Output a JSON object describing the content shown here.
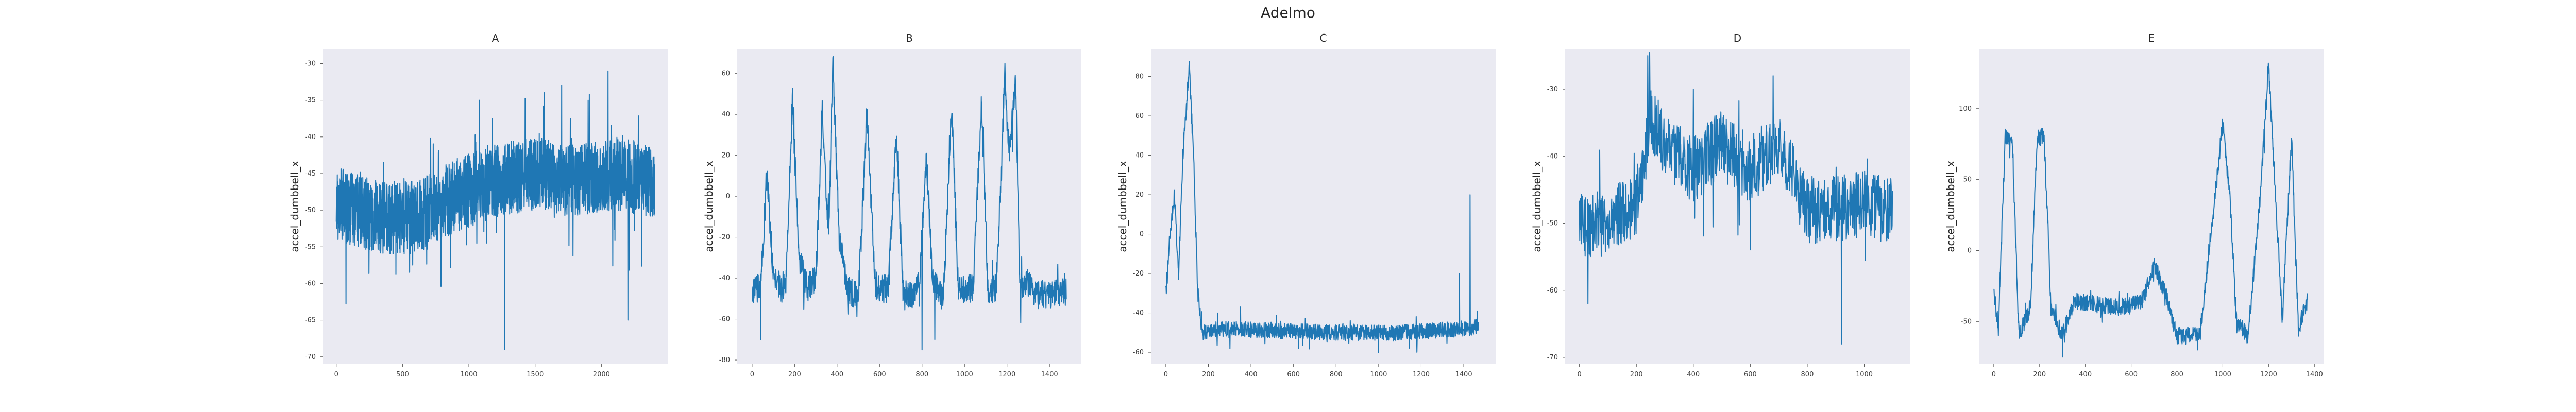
{
  "figure": {
    "title": "Adelmo"
  },
  "colors": {
    "line": "#1f77b4",
    "plot_background": "#eaeaf2"
  },
  "chart_data": [
    {
      "type": "line",
      "title": "A",
      "xlabel": "",
      "ylabel": "accel_dumbbell_x",
      "x_range": [
        0,
        2400
      ],
      "xlim": [
        -100,
        2500
      ],
      "ylim": [
        -71,
        -28
      ],
      "xticks": [
        0,
        500,
        1000,
        1500,
        2000
      ],
      "yticks": [
        -70,
        -65,
        -60,
        -55,
        -50,
        -45,
        -40,
        -35,
        -30
      ],
      "grid": false,
      "keypoints": [
        [
          0,
          -49
        ],
        [
          300,
          -51
        ],
        [
          600,
          -51
        ],
        [
          900,
          -48
        ],
        [
          1200,
          -46
        ],
        [
          1500,
          -45
        ],
        [
          1800,
          -46
        ],
        [
          2100,
          -45
        ],
        [
          2400,
          -46
        ]
      ],
      "noise": 5,
      "spikes": [
        [
          1270,
          -69
        ],
        [
          1700,
          -33
        ],
        [
          2050,
          -31
        ],
        [
          2200,
          -65
        ],
        [
          1080,
          -35
        ],
        [
          1900,
          -35
        ]
      ]
    },
    {
      "type": "line",
      "title": "B",
      "xlabel": "",
      "ylabel": "accel_dumbbell_x",
      "x_range": [
        0,
        1480
      ],
      "xlim": [
        -70,
        1550
      ],
      "ylim": [
        -82,
        72
      ],
      "xticks": [
        0,
        200,
        400,
        600,
        800,
        1000,
        1200,
        1400
      ],
      "yticks": [
        -80,
        -60,
        -40,
        -20,
        0,
        20,
        40,
        60
      ],
      "grid": false,
      "keypoints": [
        [
          0,
          -45
        ],
        [
          40,
          -45
        ],
        [
          70,
          10
        ],
        [
          100,
          -40
        ],
        [
          140,
          -45
        ],
        [
          160,
          -40
        ],
        [
          190,
          48
        ],
        [
          220,
          -30
        ],
        [
          260,
          -45
        ],
        [
          300,
          -40
        ],
        [
          330,
          42
        ],
        [
          360,
          -20
        ],
        [
          380,
          65
        ],
        [
          410,
          -20
        ],
        [
          450,
          -45
        ],
        [
          500,
          -50
        ],
        [
          540,
          40
        ],
        [
          580,
          -45
        ],
        [
          640,
          -45
        ],
        [
          680,
          30
        ],
        [
          710,
          -45
        ],
        [
          760,
          -50
        ],
        [
          790,
          -40
        ],
        [
          820,
          20
        ],
        [
          850,
          -40
        ],
        [
          900,
          -50
        ],
        [
          940,
          45
        ],
        [
          970,
          -45
        ],
        [
          1040,
          -45
        ],
        [
          1080,
          45
        ],
        [
          1110,
          -45
        ],
        [
          1150,
          -45
        ],
        [
          1190,
          58
        ],
        [
          1210,
          20
        ],
        [
          1240,
          58
        ],
        [
          1260,
          -45
        ],
        [
          1300,
          -42
        ],
        [
          1340,
          -48
        ],
        [
          1400,
          -48
        ],
        [
          1480,
          -46
        ]
      ],
      "noise": 7,
      "spikes": [
        [
          800,
          -75
        ],
        [
          40,
          -70
        ],
        [
          860,
          -70
        ]
      ]
    },
    {
      "type": "line",
      "title": "C",
      "xlabel": "",
      "ylabel": "accel_dumbbell_x",
      "x_range": [
        0,
        1470
      ],
      "xlim": [
        -70,
        1550
      ],
      "ylim": [
        -66,
        94
      ],
      "xticks": [
        0,
        200,
        400,
        600,
        800,
        1000,
        1200,
        1400
      ],
      "yticks": [
        -60,
        -40,
        -20,
        0,
        20,
        40,
        60,
        80
      ],
      "grid": false,
      "keypoints": [
        [
          0,
          -30
        ],
        [
          20,
          0
        ],
        [
          40,
          20
        ],
        [
          60,
          -20
        ],
        [
          80,
          40
        ],
        [
          110,
          85
        ],
        [
          130,
          40
        ],
        [
          150,
          -30
        ],
        [
          170,
          -50
        ],
        [
          250,
          -48
        ],
        [
          500,
          -49
        ],
        [
          800,
          -50
        ],
        [
          1100,
          -50
        ],
        [
          1400,
          -48
        ],
        [
          1470,
          -47
        ]
      ],
      "noise": 4,
      "spikes": [
        [
          1430,
          20
        ],
        [
          1180,
          -60
        ],
        [
          1380,
          -20
        ]
      ]
    },
    {
      "type": "line",
      "title": "D",
      "xlabel": "",
      "ylabel": "accel_dumbbell_x",
      "x_range": [
        0,
        1100
      ],
      "xlim": [
        -50,
        1160
      ],
      "ylim": [
        -71,
        -24
      ],
      "xticks": [
        0,
        200,
        400,
        600,
        800,
        1000
      ],
      "yticks": [
        -70,
        -60,
        -50,
        -40,
        -30
      ],
      "grid": false,
      "keypoints": [
        [
          0,
          -50
        ],
        [
          100,
          -50
        ],
        [
          200,
          -47
        ],
        [
          250,
          -35
        ],
        [
          300,
          -38
        ],
        [
          400,
          -42
        ],
        [
          500,
          -38
        ],
        [
          600,
          -42
        ],
        [
          700,
          -38
        ],
        [
          800,
          -48
        ],
        [
          900,
          -48
        ],
        [
          1000,
          -47
        ],
        [
          1100,
          -48
        ]
      ],
      "noise": 5,
      "spikes": [
        [
          240,
          -25
        ],
        [
          680,
          -28
        ],
        [
          920,
          -68
        ],
        [
          400,
          -30
        ],
        [
          30,
          -62
        ]
      ]
    },
    {
      "type": "line",
      "title": "E",
      "xlabel": "",
      "ylabel": "accel_dumbbell_x",
      "x_range": [
        0,
        1370
      ],
      "xlim": [
        -65,
        1440
      ],
      "ylim": [
        -80,
        142
      ],
      "xticks": [
        0,
        200,
        400,
        600,
        800,
        1000,
        1200,
        1400
      ],
      "yticks": [
        -50,
        0,
        50,
        100
      ],
      "grid": false,
      "keypoints": [
        [
          0,
          -30
        ],
        [
          20,
          -55
        ],
        [
          50,
          80
        ],
        [
          80,
          80
        ],
        [
          110,
          -60
        ],
        [
          160,
          -40
        ],
        [
          190,
          80
        ],
        [
          220,
          80
        ],
        [
          250,
          -40
        ],
        [
          300,
          -60
        ],
        [
          350,
          -35
        ],
        [
          450,
          -38
        ],
        [
          550,
          -40
        ],
        [
          650,
          -35
        ],
        [
          700,
          -10
        ],
        [
          750,
          -30
        ],
        [
          800,
          -60
        ],
        [
          900,
          -60
        ],
        [
          960,
          30
        ],
        [
          1000,
          90
        ],
        [
          1030,
          40
        ],
        [
          1060,
          -50
        ],
        [
          1110,
          -60
        ],
        [
          1160,
          30
        ],
        [
          1200,
          130
        ],
        [
          1230,
          40
        ],
        [
          1260,
          -50
        ],
        [
          1300,
          80
        ],
        [
          1330,
          -55
        ],
        [
          1370,
          -35
        ]
      ],
      "noise": 6,
      "spikes": [
        [
          300,
          -75
        ],
        [
          890,
          -70
        ]
      ]
    }
  ]
}
